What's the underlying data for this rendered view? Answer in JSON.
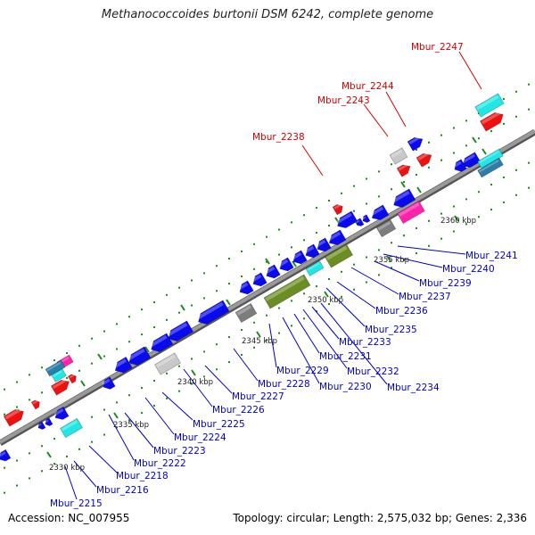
{
  "title": "Methanococcoides burtonii DSM 6242, complete genome",
  "accession_text": "Accession: NC_007955",
  "summary_text": "Topology: circular; Length: 2,575,032 bp; Genes: 2,336",
  "colors": {
    "backbone": "#8a8a8a",
    "tick": "#1a8a1a",
    "blue_label": "#0000cc",
    "red_label": "#d40000",
    "gene_blue": "#0a0aee",
    "gene_red": "#ee1111",
    "gene_olive": "#6b8e23",
    "gene_gray": "#7d7d7d",
    "gene_light": "#c8c8c8",
    "gene_cyan": "#22e6e6",
    "gene_magenta": "#ff22aa",
    "gene_teal": "#2a7fa8"
  },
  "scale_labels": [
    "2330 kbp",
    "2335 kbp",
    "2340 kbp",
    "2345 kbp",
    "2350 kbp",
    "2355 kbp",
    "2360 kbp"
  ],
  "gene_labels_blue": [
    "Mbur_2215",
    "Mbur_2216",
    "Mbur_2218",
    "Mbur_2222",
    "Mbur_2223",
    "Mbur_2224",
    "Mbur_2225",
    "Mbur_2226",
    "Mbur_2227",
    "Mbur_2228",
    "Mbur_2229",
    "Mbur_2230",
    "Mbur_2231",
    "Mbur_2232",
    "Mbur_2233",
    "Mbur_2234",
    "Mbur_2235",
    "Mbur_2236",
    "Mbur_2237",
    "Mbur_2239",
    "Mbur_2240",
    "Mbur_2241"
  ],
  "gene_labels_red": [
    "Mbur_2238",
    "Mbur_2243",
    "Mbur_2244",
    "Mbur_2247"
  ]
}
